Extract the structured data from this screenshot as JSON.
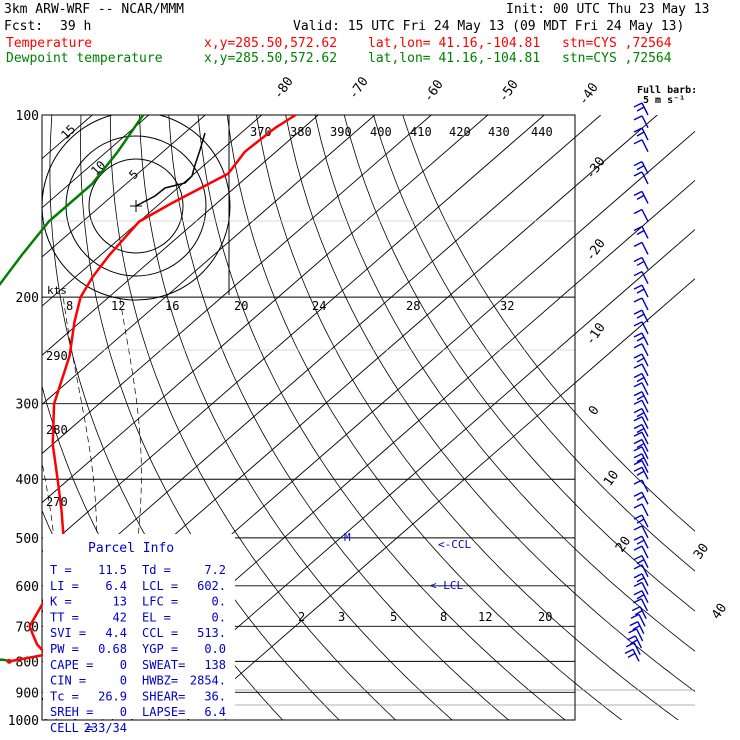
{
  "header": {
    "model": "3km ARW-WRF -- NCAR/MMM",
    "init": "Init: 00 UTC Thu 23 May 13",
    "fcst_label": "Fcst:",
    "fcst_value": "39 h",
    "valid": "Valid: 15 UTC Fri 24 May 13 (09 MDT Fri 24 May 13)",
    "temp_line": {
      "name": "Temperature",
      "xy": "x,y=285.50,572.62",
      "latlon": "lat,lon= 41.16,-104.81",
      "stn": "stn=CYS ,72564",
      "color": "#ff0000"
    },
    "dew_line": {
      "name": "Dewpoint temperature",
      "xy": "x,y=285.50,572.62",
      "latlon": "lat,lon= 41.16,-104.81",
      "stn": "stn=CYS ,72564",
      "color": "#008000"
    }
  },
  "barb_legend": {
    "line1": "Full barb:",
    "line2": "5 m s⁻¹"
  },
  "hodograph": {
    "kts_label": "kts",
    "ring_labels": [
      "5",
      "10",
      "15"
    ]
  },
  "parcel_info": {
    "title": "Parcel Info",
    "rows": [
      [
        "T   =",
        "11.5",
        "Td =",
        "7.2"
      ],
      [
        "LI  =",
        "6.4",
        "LCL =",
        "602."
      ],
      [
        "K   =",
        "13",
        "LFC =",
        "0."
      ],
      [
        "TT  =",
        "42",
        "EL  =",
        "0."
      ],
      [
        "SVI =",
        "4.4",
        "CCL =",
        "513."
      ],
      [
        "PW  =",
        "0.68",
        "YGP =",
        "0.0"
      ],
      [
        "CAPE =",
        "0",
        "SWEAT=",
        "138"
      ],
      [
        "CIN  =",
        "0",
        "HWBZ=",
        "2854."
      ],
      [
        "Tc   =",
        "26.9",
        "SHEAR=",
        "36."
      ],
      [
        "SREH =",
        "0",
        "LAPSE=",
        "6.4"
      ],
      [
        "CELL =",
        "233/34",
        "",
        ""
      ]
    ]
  },
  "annotations": {
    "ccl": "<-CCL",
    "lcl": "<-LCL"
  },
  "colors": {
    "temperature": "#ff0000",
    "dewpoint": "#008000",
    "barbs": "#0000cc",
    "isobar": "#000000",
    "header_red": "#ff0000",
    "header_green": "#008000"
  },
  "chart_data": {
    "type": "line",
    "chart_kind": "skew-T log-P sounding",
    "y_axis": {
      "scale": "log",
      "unit": "hPa",
      "ticks": [
        100,
        200,
        300,
        400,
        500,
        600,
        700,
        800,
        900,
        1000
      ]
    },
    "isotherm_labels": [
      "-80",
      "-70",
      "-60",
      "-50",
      "-40",
      "-30",
      "-20",
      "-10",
      "0",
      "10",
      "20",
      "30",
      "40"
    ],
    "theta_labels_top": [
      "370",
      "380",
      "390",
      "400",
      "410",
      "420",
      "430",
      "440"
    ],
    "hodo_speed_labels": [
      "8",
      "12",
      "16",
      "20",
      "24",
      "28",
      "32"
    ],
    "theta_left_labels": [
      "290",
      "280",
      "270"
    ],
    "mixing_ratio_labels": [
      "2",
      "3",
      "5",
      "8",
      "12",
      "20"
    ],
    "series": [
      {
        "name": "Temperature",
        "color": "#ff0000",
        "points": [
          [
            800,
            6.5
          ],
          [
            790,
            9
          ],
          [
            780,
            11.5
          ],
          [
            770,
            10.5
          ],
          [
            750,
            8
          ],
          [
            720,
            5
          ],
          [
            700,
            3
          ],
          [
            650,
            1
          ],
          [
            600,
            -1
          ],
          [
            550,
            -4
          ],
          [
            500,
            -9
          ],
          [
            450,
            -15
          ],
          [
            400,
            -22
          ],
          [
            350,
            -30
          ],
          [
            300,
            -38
          ],
          [
            250,
            -45
          ],
          [
            220,
            -51
          ],
          [
            200,
            -55
          ],
          [
            185,
            -57
          ],
          [
            170,
            -58.5
          ],
          [
            150,
            -60
          ],
          [
            140,
            -58
          ],
          [
            125,
            -54
          ],
          [
            115,
            -55.5
          ],
          [
            105,
            -55
          ],
          [
            100,
            -54
          ]
        ]
      },
      {
        "name": "Dewpoint temperature",
        "color": "#008000",
        "points": [
          [
            800,
            7
          ],
          [
            795,
            5
          ],
          [
            790,
            -5
          ],
          [
            785,
            -8.5
          ],
          [
            760,
            -9
          ],
          [
            720,
            -10
          ],
          [
            700,
            -11.5
          ],
          [
            650,
            -13
          ],
          [
            600,
            -17
          ],
          [
            550,
            -21
          ],
          [
            500,
            -26
          ],
          [
            450,
            -32
          ],
          [
            400,
            -39
          ],
          [
            350,
            -47
          ],
          [
            300,
            -55
          ],
          [
            250,
            -63
          ],
          [
            200,
            -71
          ],
          [
            170,
            -74
          ],
          [
            150,
            -76
          ],
          [
            130,
            -76
          ],
          [
            115,
            -78
          ],
          [
            100,
            -81
          ]
        ]
      }
    ],
    "wind_barbs": {
      "unit": "m s-1",
      "levels": [
        100,
        105,
        110,
        115,
        125,
        130,
        140,
        150,
        160,
        170,
        180,
        190,
        200,
        210,
        220,
        230,
        240,
        250,
        260,
        270,
        280,
        290,
        300,
        310,
        320,
        330,
        340,
        350,
        360,
        370,
        380,
        390,
        400,
        420,
        440,
        460,
        480,
        500,
        520,
        540,
        560,
        580,
        600,
        620,
        640,
        660,
        680,
        700,
        720,
        740,
        760,
        780,
        800
      ]
    }
  }
}
